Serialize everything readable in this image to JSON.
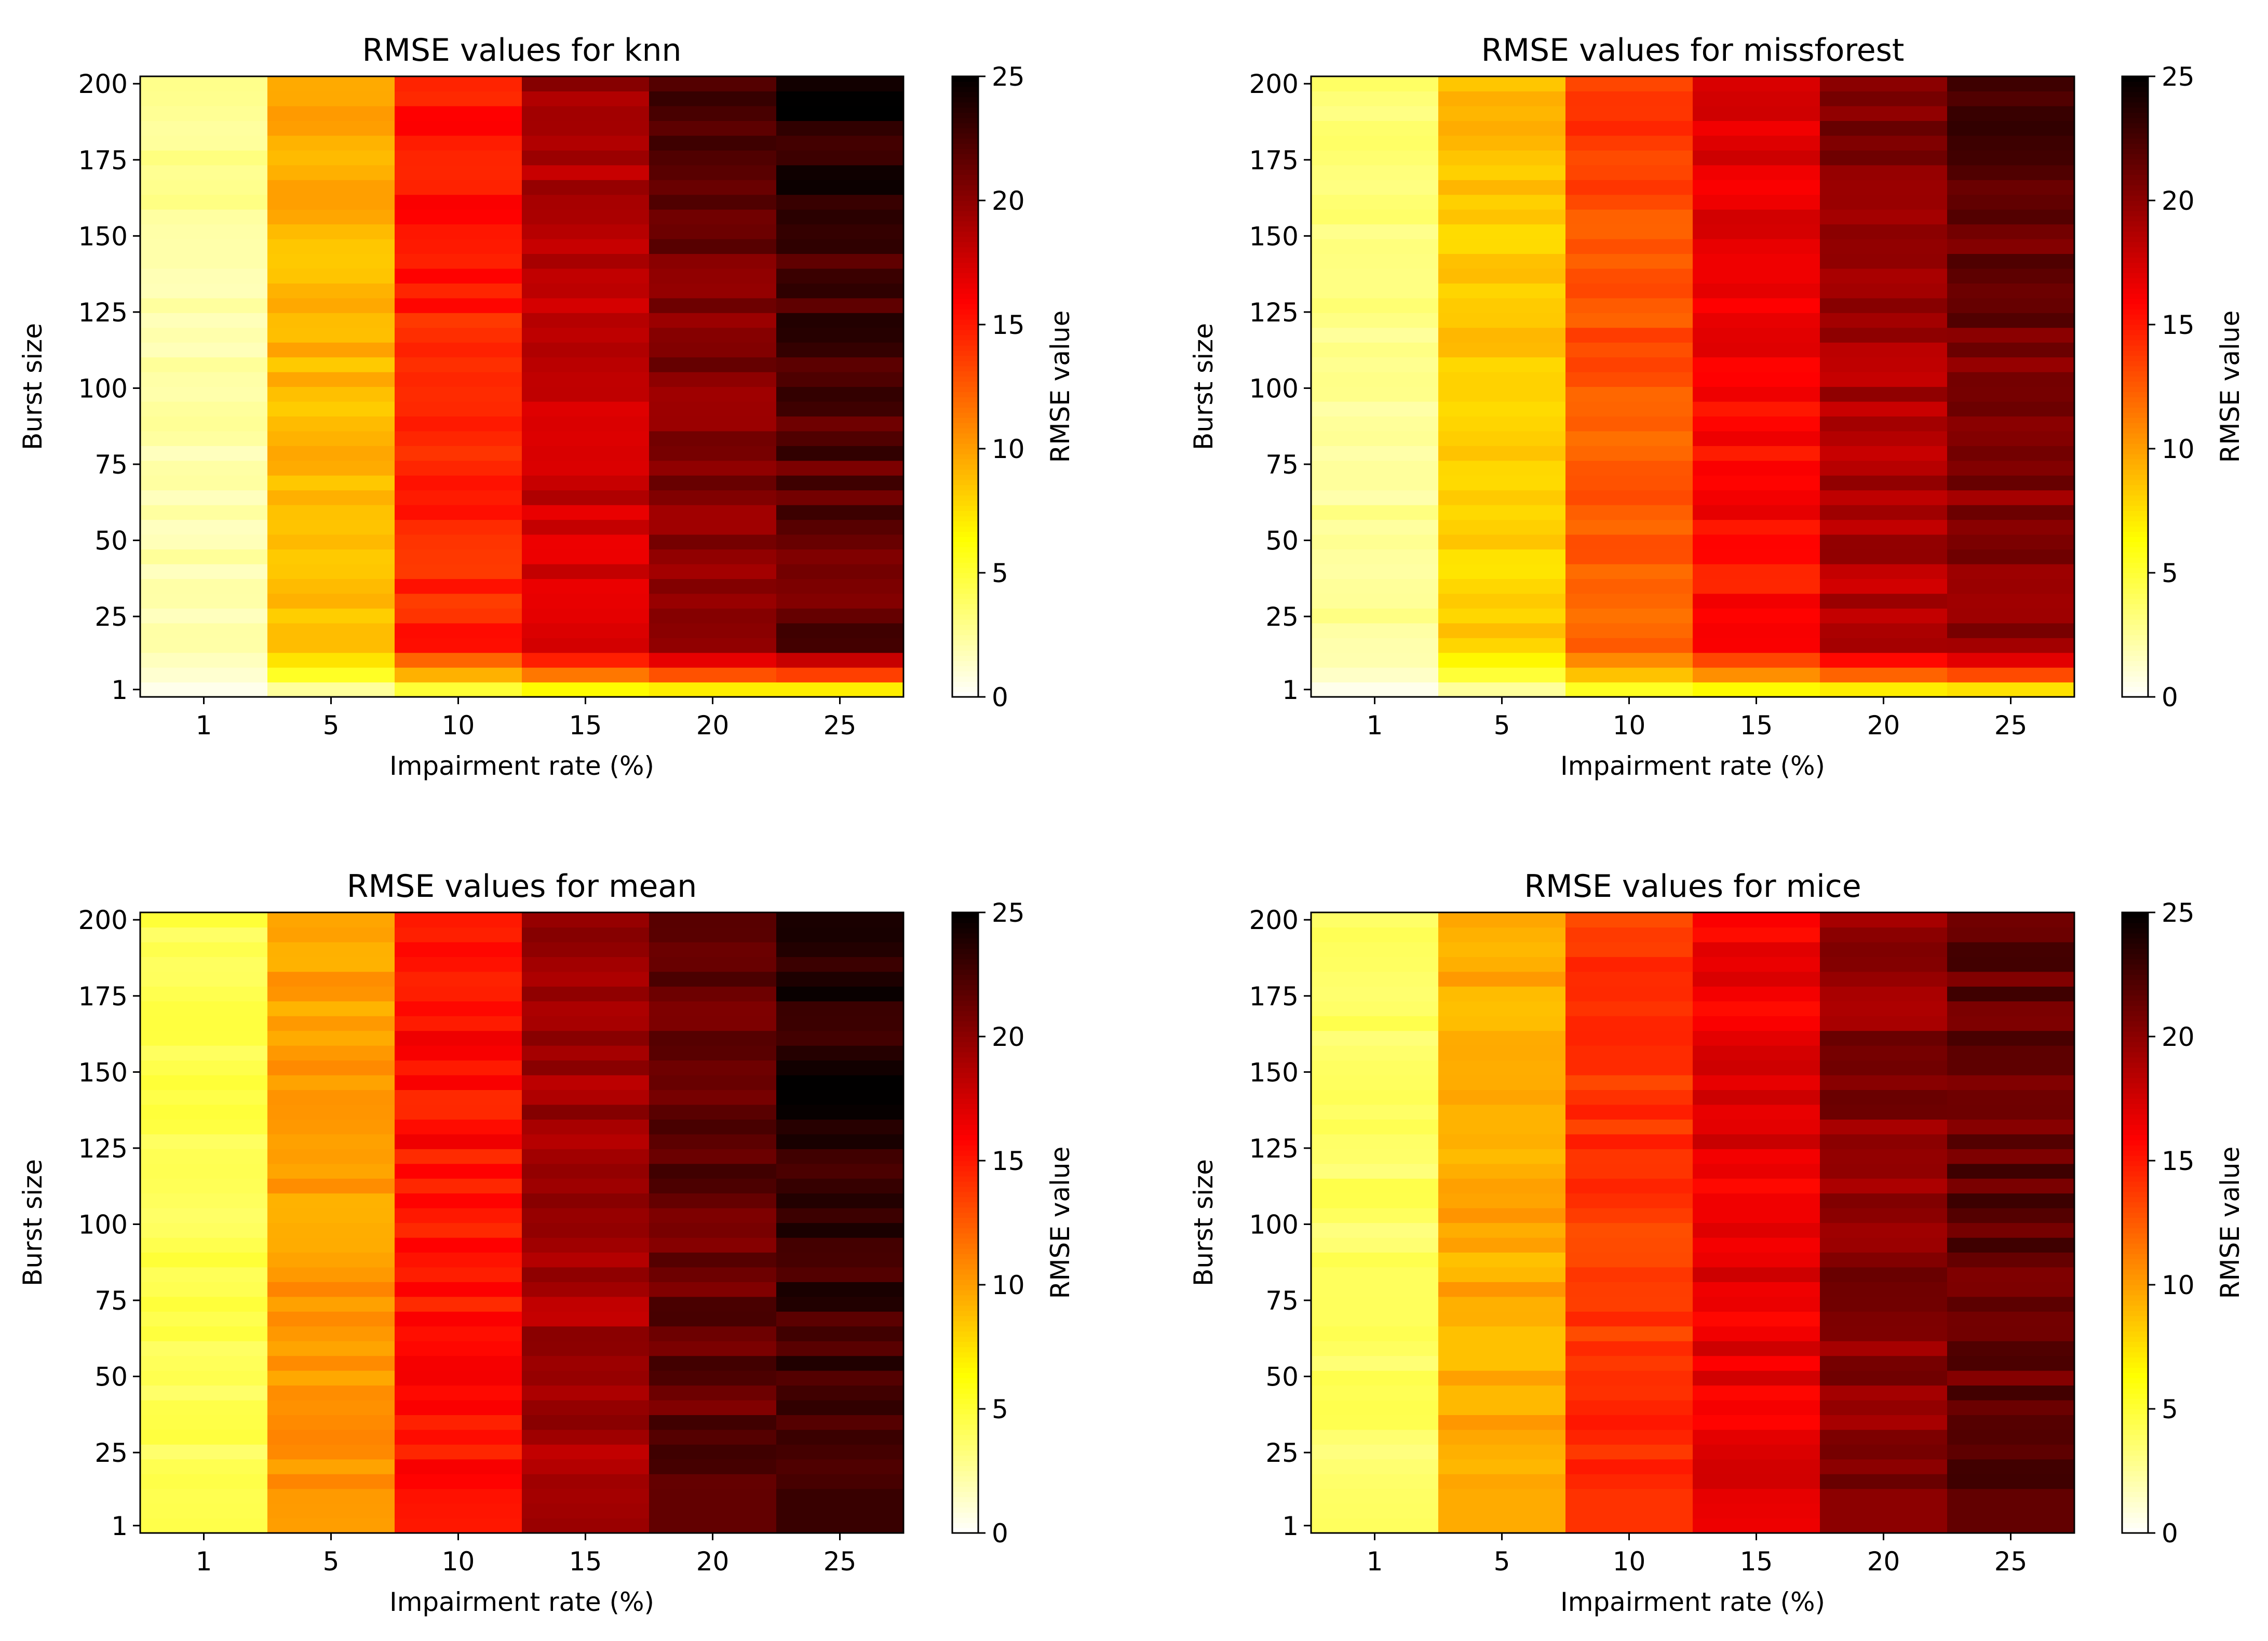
{
  "colormap": {
    "name": "hot_r",
    "stops": [
      "#ffffff",
      "#ffff00",
      "#ff0000",
      "#000000"
    ]
  },
  "chart_data": [
    {
      "type": "heatmap",
      "title": "RMSE values for knn",
      "xlabel": "Impairment rate (%)",
      "ylabel": "Burst size",
      "colorbar_label": "RMSE value",
      "x_categories": [
        "1",
        "5",
        "10",
        "15",
        "20",
        "25"
      ],
      "y_ticks": [
        "1",
        "25",
        "50",
        "75",
        "100",
        "125",
        "150",
        "175",
        "200"
      ],
      "y_range": [
        1,
        200
      ],
      "value_range": [
        0,
        25
      ],
      "colorbar_ticks": [
        "0",
        "5",
        "10",
        "15",
        "20",
        "25"
      ],
      "columns": [
        {
          "impairment_rate": 1,
          "bottom": 0.5,
          "top": 3.0,
          "avg": 2.0
        },
        {
          "impairment_rate": 5,
          "bottom": 2.5,
          "top": 9.5,
          "avg": 9.0
        },
        {
          "impairment_rate": 10,
          "bottom": 5.0,
          "top": 15.5,
          "avg": 14.5
        },
        {
          "impairment_rate": 15,
          "bottom": 6.5,
          "top": 19.5,
          "avg": 17.5
        },
        {
          "impairment_rate": 20,
          "bottom": 7.0,
          "top": 22.5,
          "avg": 20.0
        },
        {
          "impairment_rate": 25,
          "bottom": 7.0,
          "top": 25.0,
          "avg": 21.5
        }
      ]
    },
    {
      "type": "heatmap",
      "title": "RMSE values for missforest",
      "xlabel": "Impairment rate (%)",
      "ylabel": "Burst size",
      "colorbar_label": "RMSE value",
      "x_categories": [
        "1",
        "5",
        "10",
        "15",
        "20",
        "25"
      ],
      "y_ticks": [
        "1",
        "25",
        "50",
        "75",
        "100",
        "125",
        "150",
        "175",
        "200"
      ],
      "y_range": [
        1,
        200
      ],
      "value_range": [
        0,
        25
      ],
      "colorbar_ticks": [
        "0",
        "5",
        "10",
        "15",
        "20",
        "25"
      ],
      "columns": [
        {
          "impairment_rate": 1,
          "bottom": 0.5,
          "top": 4.0,
          "avg": 2.5
        },
        {
          "impairment_rate": 5,
          "bottom": 2.5,
          "top": 9.0,
          "avg": 8.0
        },
        {
          "impairment_rate": 10,
          "bottom": 5.5,
          "top": 14.0,
          "avg": 12.5
        },
        {
          "impairment_rate": 15,
          "bottom": 6.5,
          "top": 17.5,
          "avg": 15.5
        },
        {
          "impairment_rate": 20,
          "bottom": 7.0,
          "top": 21.0,
          "avg": 18.5
        },
        {
          "impairment_rate": 25,
          "bottom": 7.5,
          "top": 23.0,
          "avg": 20.0
        }
      ]
    },
    {
      "type": "heatmap",
      "title": "RMSE values for mean",
      "xlabel": "Impairment rate (%)",
      "ylabel": "Burst size",
      "colorbar_label": "RMSE value",
      "x_categories": [
        "1",
        "5",
        "10",
        "15",
        "20",
        "25"
      ],
      "y_ticks": [
        "1",
        "25",
        "50",
        "75",
        "100",
        "125",
        "150",
        "175",
        "200"
      ],
      "y_range": [
        1,
        200
      ],
      "value_range": [
        0,
        25
      ],
      "colorbar_ticks": [
        "0",
        "5",
        "10",
        "15",
        "20",
        "25"
      ],
      "columns": [
        {
          "impairment_rate": 1,
          "bottom": 4.5,
          "top": 4.5,
          "avg": 4.3
        },
        {
          "impairment_rate": 5,
          "bottom": 10.0,
          "top": 10.0,
          "avg": 10.2
        },
        {
          "impairment_rate": 10,
          "bottom": 15.0,
          "top": 15.5,
          "avg": 15.3
        },
        {
          "impairment_rate": 15,
          "bottom": 19.5,
          "top": 19.5,
          "avg": 19.0
        },
        {
          "impairment_rate": 20,
          "bottom": 21.5,
          "top": 21.5,
          "avg": 21.5
        },
        {
          "impairment_rate": 25,
          "bottom": 23.0,
          "top": 24.5,
          "avg": 23.0
        }
      ]
    },
    {
      "type": "heatmap",
      "title": "RMSE values for mice",
      "xlabel": "Impairment rate (%)",
      "ylabel": "Burst size",
      "colorbar_label": "RMSE value",
      "x_categories": [
        "1",
        "5",
        "10",
        "15",
        "20",
        "25"
      ],
      "y_ticks": [
        "1",
        "25",
        "50",
        "75",
        "100",
        "125",
        "150",
        "175",
        "200"
      ],
      "y_range": [
        1,
        200
      ],
      "value_range": [
        0,
        25
      ],
      "colorbar_ticks": [
        "0",
        "5",
        "10",
        "15",
        "20",
        "25"
      ],
      "columns": [
        {
          "impairment_rate": 1,
          "bottom": 4.0,
          "top": 4.0,
          "avg": 3.8
        },
        {
          "impairment_rate": 5,
          "bottom": 9.5,
          "top": 9.5,
          "avg": 9.5
        },
        {
          "impairment_rate": 10,
          "bottom": 14.0,
          "top": 14.0,
          "avg": 14.0
        },
        {
          "impairment_rate": 15,
          "bottom": 16.5,
          "top": 16.5,
          "avg": 16.8
        },
        {
          "impairment_rate": 20,
          "bottom": 20.0,
          "top": 20.0,
          "avg": 20.0
        },
        {
          "impairment_rate": 25,
          "bottom": 21.5,
          "top": 21.5,
          "avg": 21.5
        }
      ]
    }
  ]
}
